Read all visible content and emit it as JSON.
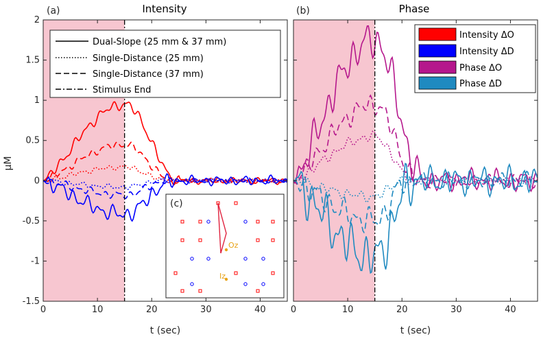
{
  "chart_data": [
    {
      "panel": "(a)",
      "type": "line",
      "title": "Intensity",
      "xlabel": "t (sec)",
      "ylabel": "μM",
      "xlim": [
        0,
        45
      ],
      "ylim": [
        -1.5,
        2
      ],
      "xticks": [
        "0",
        "10",
        "20",
        "30",
        "40"
      ],
      "yticks": [
        "-1.5",
        "-1",
        "-0.5",
        "0",
        "0.5",
        "1",
        "1.5",
        "2"
      ],
      "stimulus_interval": [
        0,
        15
      ],
      "shade_color": "#f7c6d0",
      "legend_position": "top",
      "legend": [
        {
          "label": "Dual-Slope (25 mm & 37 mm)",
          "style": "solid"
        },
        {
          "label": "Single-Distance (25 mm)",
          "style": "dotted"
        },
        {
          "label": "Single-Distance (37 mm)",
          "style": "dashed"
        },
        {
          "label": "Stimulus End",
          "style": "dashdot"
        }
      ],
      "series": [
        {
          "name": "Dual-Slope ΔO",
          "color": "#ff0000",
          "style": "solid",
          "peak": 0.95,
          "decay_end": 25,
          "noise": 0.04
        },
        {
          "name": "Single-Distance (37 mm) ΔO",
          "color": "#ff0000",
          "style": "dashed",
          "peak": 0.45,
          "decay_end": 24,
          "noise": 0.03
        },
        {
          "name": "Single-Distance (25 mm) ΔO",
          "color": "#ff0000",
          "style": "dotted",
          "peak": 0.17,
          "decay_end": 23,
          "noise": 0.02
        },
        {
          "name": "Dual-Slope ΔD",
          "color": "#0000ff",
          "style": "solid",
          "peak": -0.42,
          "decay_end": 24,
          "noise": 0.06
        },
        {
          "name": "Single-Distance (37 mm) ΔD",
          "color": "#0000ff",
          "style": "dashed",
          "peak": -0.18,
          "decay_end": 23,
          "noise": 0.03
        },
        {
          "name": "Single-Distance (25 mm) ΔD",
          "color": "#0000ff",
          "style": "dotted",
          "peak": -0.08,
          "decay_end": 22,
          "noise": 0.02
        }
      ]
    },
    {
      "panel": "(b)",
      "type": "line",
      "title": "Phase",
      "xlabel": "t (sec)",
      "ylabel": "",
      "xlim": [
        0,
        45
      ],
      "ylim": [
        -1.5,
        2
      ],
      "xticks": [
        "0",
        "10",
        "20",
        "30",
        "40"
      ],
      "stimulus_interval": [
        0,
        15
      ],
      "shade_color": "#f7c6d0",
      "legend_position": "top-right",
      "legend": [
        {
          "label": "Intensity  ΔO",
          "color": "#ff0000"
        },
        {
          "label": "Intensity  ΔD",
          "color": "#0000ff"
        },
        {
          "label": "Phase  ΔO",
          "color": "#b5178c"
        },
        {
          "label": "Phase  ΔD",
          "color": "#1f8ac0"
        }
      ],
      "series": [
        {
          "name": "Dual-Slope ΔO",
          "color": "#b5178c",
          "style": "solid",
          "peak": 1.75,
          "decay_end": 24,
          "noise": 0.14
        },
        {
          "name": "Single-Distance (37 mm) ΔO",
          "color": "#b5178c",
          "style": "dashed",
          "peak": 0.95,
          "decay_end": 23,
          "noise": 0.08
        },
        {
          "name": "Single-Distance (25 mm) ΔO",
          "color": "#b5178c",
          "style": "dotted",
          "peak": 0.55,
          "decay_end": 22,
          "noise": 0.04
        },
        {
          "name": "Dual-Slope ΔD",
          "color": "#1f8ac0",
          "style": "solid",
          "peak": -0.95,
          "decay_end": 22,
          "noise": 0.18
        },
        {
          "name": "Single-Distance (37 mm) ΔD",
          "color": "#1f8ac0",
          "style": "dashed",
          "peak": -0.5,
          "decay_end": 21,
          "noise": 0.1
        },
        {
          "name": "Single-Distance (25 mm) ΔD",
          "color": "#1f8ac0",
          "style": "dotted",
          "peak": -0.2,
          "decay_end": 20,
          "noise": 0.04
        }
      ]
    },
    {
      "panel": "(c)",
      "type": "scatter",
      "title": "",
      "annotations": [
        "Oz",
        "Iz"
      ],
      "series": [
        {
          "name": "sources",
          "color": "#ff0000",
          "marker": "square"
        },
        {
          "name": "detectors",
          "color": "#0000ff",
          "marker": "circle"
        },
        {
          "name": "landmarks",
          "color": "#e8a317",
          "marker": "dot"
        }
      ]
    }
  ]
}
